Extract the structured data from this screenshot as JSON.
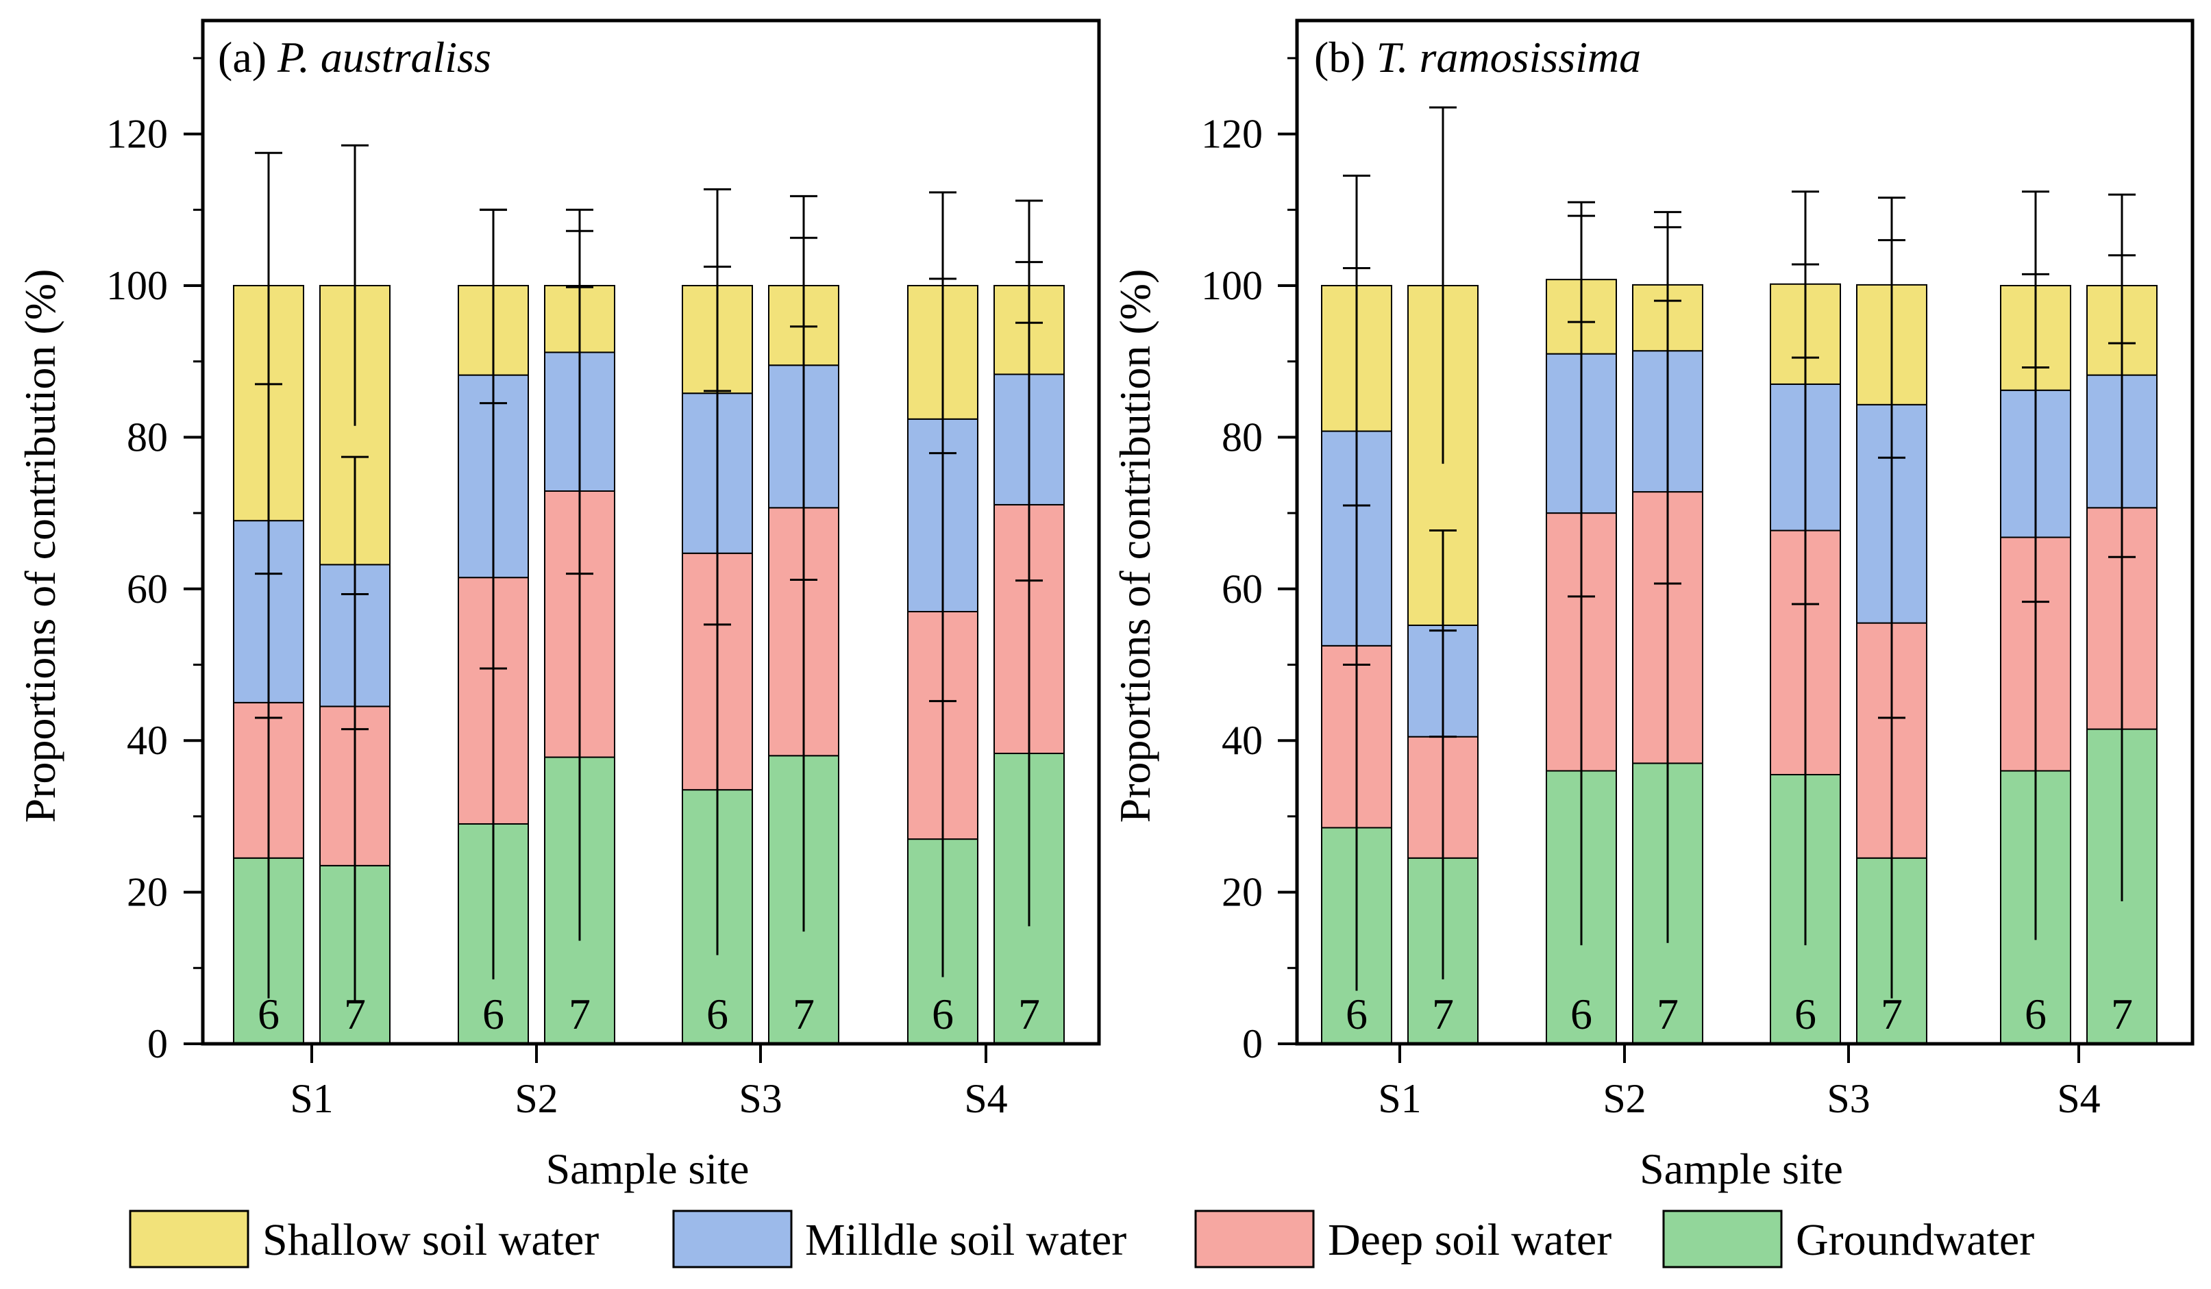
{
  "figure": {
    "legend": [
      {
        "key": "shallow",
        "label": "Shallow soil water",
        "color": "#F2E27A"
      },
      {
        "key": "middle",
        "label": "Milldle soil water",
        "color": "#9CBAEA"
      },
      {
        "key": "deep",
        "label": "Deep soil water",
        "color": "#F6A7A1"
      },
      {
        "key": "ground",
        "label": "Groundwater",
        "color": "#92D69A"
      }
    ]
  },
  "chart_data": [
    {
      "type": "bar",
      "stacked": true,
      "panel_label": "(a) ",
      "title_species": "P. australiss",
      "xlabel": "Sample site",
      "ylabel": "Proportions of contribution (%)",
      "ylim": [
        0,
        130
      ],
      "yticks": [
        0,
        20,
        40,
        60,
        80,
        100,
        120
      ],
      "categories": [
        "S1",
        "S2",
        "S3",
        "S4"
      ],
      "bar_labels": [
        "6",
        "7"
      ],
      "stack_order": [
        "ground",
        "deep",
        "middle",
        "shallow"
      ],
      "series": [
        {
          "name": "Groundwater",
          "values": [
            [
              24.5,
              23.5
            ],
            [
              29,
              37.8
            ],
            [
              33.5,
              38
            ],
            [
              27,
              38.3
            ]
          ],
          "err": [
            [
              18.5,
              18
            ],
            [
              20.5,
              24.2
            ],
            [
              21.8,
              23.2
            ],
            [
              18.2,
              22.8
            ]
          ]
        },
        {
          "name": "Deep soil water",
          "values": [
            [
              20.5,
              21
            ],
            [
              32.5,
              35.1
            ],
            [
              31.2,
              32.7
            ],
            [
              30,
              32.8
            ]
          ],
          "err": [
            [
              17,
              14.8
            ],
            [
              23,
              26.9
            ],
            [
              21.4,
              23.9
            ],
            [
              20.9,
              24
            ]
          ]
        },
        {
          "name": "Milldle soil water",
          "values": [
            [
              24,
              18.7
            ],
            [
              26.7,
              18.3
            ],
            [
              21.1,
              18.8
            ],
            [
              25.4,
              17.2
            ]
          ],
          "err": [
            [
              18,
              14.2
            ],
            [
              21.8,
              16
            ],
            [
              16.7,
              16.8
            ],
            [
              18.5,
              14.8
            ]
          ]
        },
        {
          "name": "Shallow soil water",
          "values": [
            [
              31,
              36.8
            ],
            [
              11.8,
              8.8
            ],
            [
              14.2,
              10.5
            ],
            [
              17.6,
              11.7
            ]
          ],
          "err": [
            [
              17.5,
              18.5
            ],
            [
              10,
              10
            ],
            [
              12.7,
              11.8
            ],
            [
              12.3,
              11.2
            ]
          ]
        }
      ]
    },
    {
      "type": "bar",
      "stacked": true,
      "panel_label": "(b) ",
      "title_species": "T. ramosissima",
      "xlabel": "Sample site",
      "ylabel": "Proportions of contribution (%)",
      "ylim": [
        0,
        130
      ],
      "yticks": [
        0,
        20,
        40,
        60,
        80,
        100,
        120
      ],
      "categories": [
        "S1",
        "S2",
        "S3",
        "S4"
      ],
      "bar_labels": [
        "6",
        "7"
      ],
      "stack_order": [
        "ground",
        "deep",
        "middle",
        "shallow"
      ],
      "series": [
        {
          "name": "Groundwater",
          "values": [
            [
              28.5,
              24.5
            ],
            [
              36,
              37
            ],
            [
              35.5,
              24.5
            ],
            [
              36,
              41.5
            ]
          ],
          "err": [
            [
              21.5,
              16
            ],
            [
              23,
              23.7
            ],
            [
              22.5,
              18.5
            ],
            [
              22.3,
              22.7
            ]
          ]
        },
        {
          "name": "Deep soil water",
          "values": [
            [
              24,
              16
            ],
            [
              34,
              35.8
            ],
            [
              32.2,
              31
            ],
            [
              30.8,
              29.2
            ]
          ],
          "err": [
            [
              18.5,
              14
            ],
            [
              25.2,
              25.2
            ],
            [
              22.8,
              21.8
            ],
            [
              22.4,
              21.7
            ]
          ]
        },
        {
          "name": "Milldle soil water",
          "values": [
            [
              28.3,
              14.7
            ],
            [
              21,
              18.6
            ],
            [
              19.3,
              28.8
            ],
            [
              19.4,
              17.5
            ]
          ],
          "err": [
            [
              21.5,
              12.5
            ],
            [
              18.2,
              16.3
            ],
            [
              15.8,
              21.7
            ],
            [
              15.3,
              15.8
            ]
          ]
        },
        {
          "name": "Shallow soil water",
          "values": [
            [
              19.2,
              44.8
            ],
            [
              9.8,
              8.7
            ],
            [
              13.2,
              15.8
            ],
            [
              13.8,
              11.8
            ]
          ],
          "err": [
            [
              14.5,
              23.5
            ],
            [
              10.2,
              9.6
            ],
            [
              12.2,
              11.5
            ],
            [
              12.4,
              12.0
            ]
          ]
        }
      ]
    }
  ]
}
